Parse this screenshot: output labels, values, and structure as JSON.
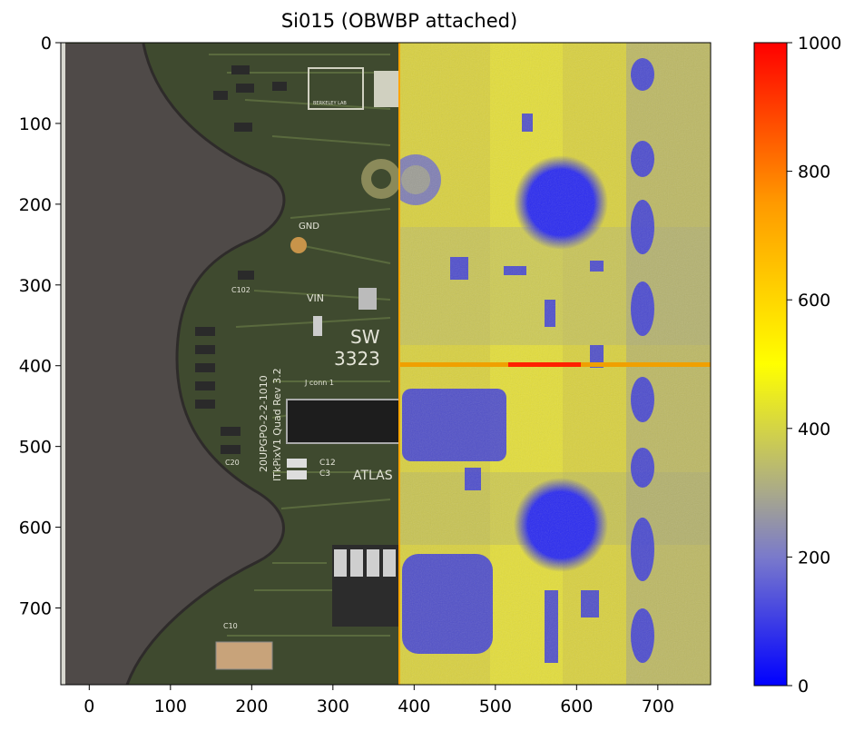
{
  "chart_data": {
    "type": "heatmap",
    "title": "Si015 (OBWBP attached)",
    "xlabel": "",
    "ylabel": "",
    "xlim": [
      -35,
      765
    ],
    "ylim": [
      795,
      0
    ],
    "x_ticks": [
      0,
      100,
      200,
      300,
      400,
      500,
      600,
      700
    ],
    "y_ticks": [
      0,
      100,
      200,
      300,
      400,
      500,
      600,
      700
    ],
    "image_left_panel": "photo of module PCB with dark shaped overlay",
    "image_right_panel": "heatmap of counts",
    "split_x": 383,
    "bright_row_y": 398,
    "colorbar": {
      "vmin": 0,
      "vmax": 1000,
      "ticks": [
        0,
        200,
        400,
        600,
        800,
        1000
      ],
      "colormap": [
        "#0000ff",
        "#9a9ab0",
        "#ffff00",
        "#ff0000"
      ]
    },
    "blobs": [
      {
        "x": 600,
        "y": 210,
        "r": 55
      },
      {
        "x": 600,
        "y": 580,
        "r": 55
      },
      {
        "x": 445,
        "y": 175,
        "r": 30
      }
    ],
    "board_text": [
      "SW",
      "3323",
      "ATLAS",
      "GND",
      "VIN",
      "C102",
      "C20",
      "C12",
      "C3",
      "C10",
      "20UPGPO-2-2-1010",
      "ITkPixV1 Quad Rev 3.2",
      "J conn 1",
      "BERKELEY LAB"
    ]
  }
}
